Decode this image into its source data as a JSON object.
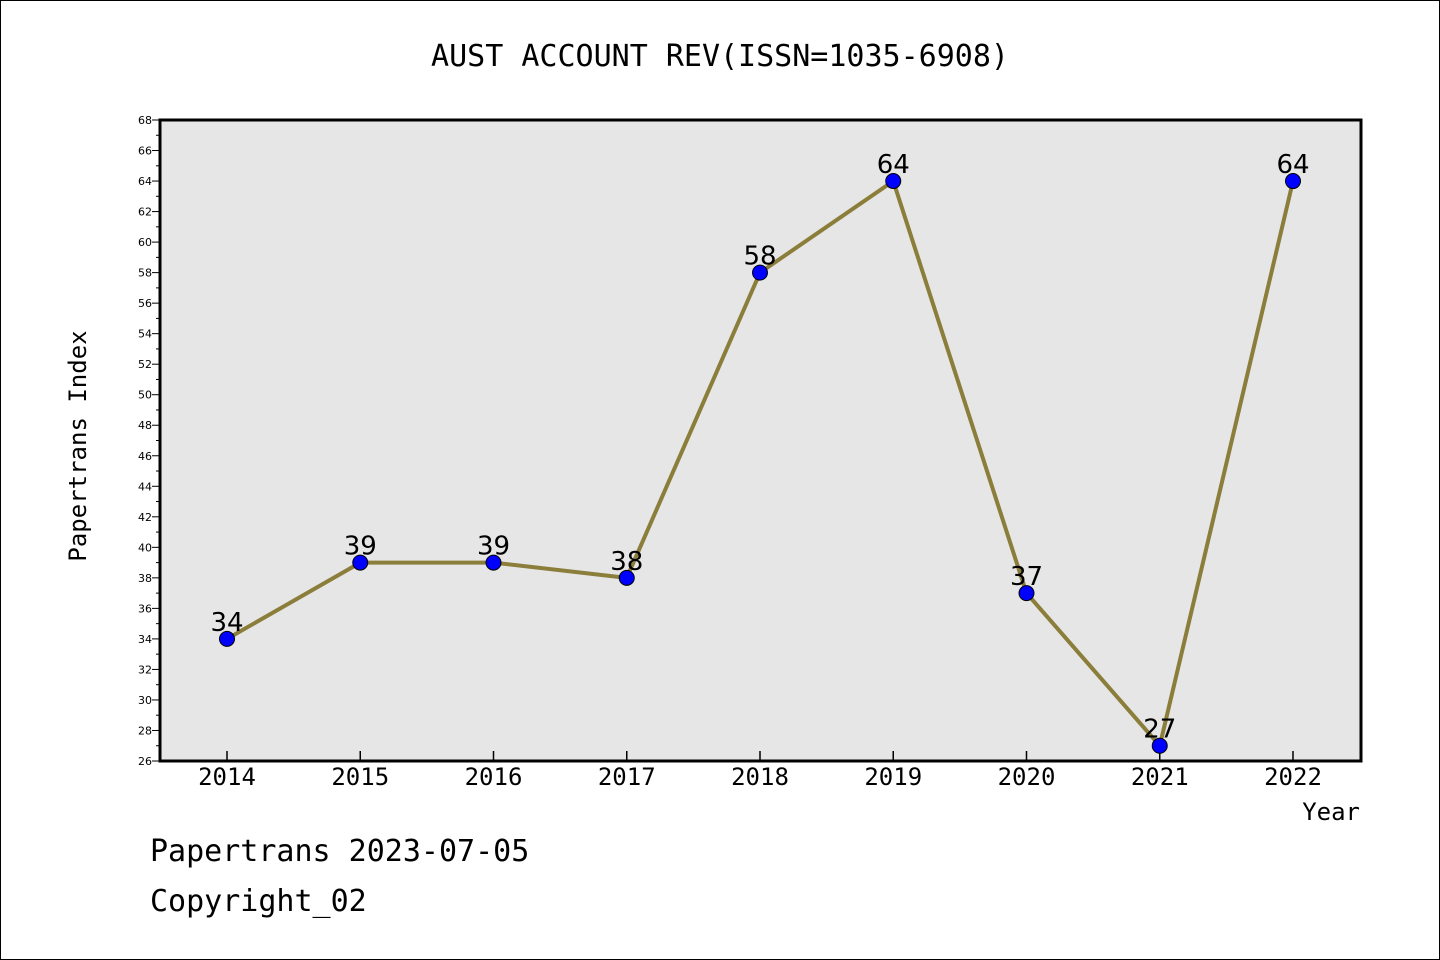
{
  "chart_data": {
    "type": "line",
    "title": "AUST ACCOUNT REV(ISSN=1035-6908)",
    "xlabel": "Year",
    "ylabel": "Papertrans Index",
    "categories": [
      "2014",
      "2015",
      "2016",
      "2017",
      "2018",
      "2019",
      "2020",
      "2021",
      "2022"
    ],
    "series": [
      {
        "values": [
          34,
          39,
          39,
          38,
          58,
          64,
          37,
          27,
          64
        ]
      }
    ],
    "ylim": [
      26,
      68
    ],
    "yticks": [
      26,
      28,
      30,
      32,
      34,
      36,
      38,
      40,
      42,
      44,
      46,
      48,
      50,
      52,
      54,
      56,
      58,
      60,
      62,
      64,
      66,
      68
    ],
    "grid": false,
    "legend": "none",
    "colors": {
      "line": "#8b7d3a",
      "marker": "#0000ff",
      "plot_background": "#e6e6e6"
    }
  },
  "footer": {
    "line1": "Papertrans 2023-07-05",
    "line2": "Copyright_02"
  }
}
